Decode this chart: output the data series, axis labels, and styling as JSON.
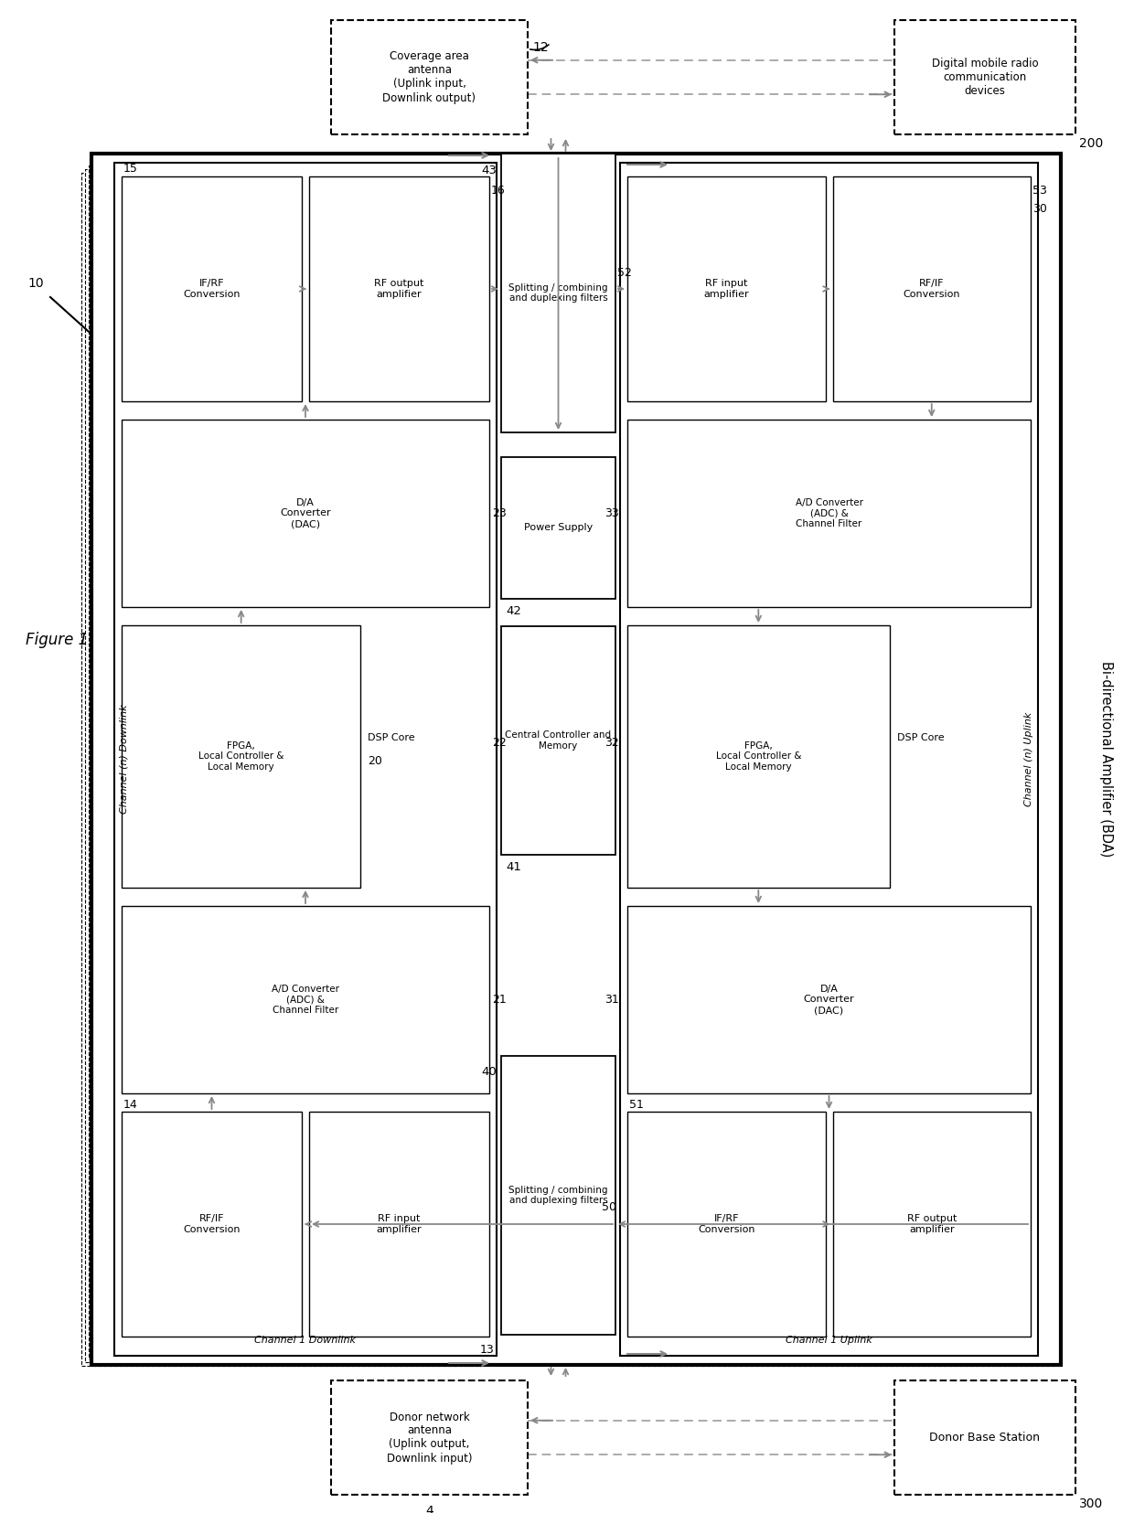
{
  "bg": "#ffffff",
  "fig_title": "Figure 1",
  "bda_label": "Bi-directional Amplifier (BDA)",
  "coverage_antenna": "Coverage area\nantenna\n(Uplink input,\nDownlink output)",
  "coverage_ref": "12",
  "digital_mobile": "Digital mobile radio\ncommunication\ndevices",
  "digital_mobile_ref": "200",
  "donor_network": "Donor network\nantenna\n(Uplink output,\nDownlink input)",
  "donor_network_ref": "4",
  "donor_base": "Donor Base Station",
  "donor_base_ref": "300",
  "ch_n_downlink": "Channel (n) Downlink",
  "ch_1_downlink": "Channel 1 Downlink",
  "ch_n_uplink": "Channel (n) Uplink",
  "ch_1_uplink": "Channel 1 Uplink",
  "dl_labels": [
    "RF input\namplifier",
    "RF/IF\nConversion",
    "A/D Converter\n(ADC) &\nChannel Filter",
    "FPGA,\nLocal Controller &\nLocal Memory",
    "DSP Core",
    "D/A\nConverter\n(DAC)",
    "IF/RF\nConversion",
    "RF output\namplifier"
  ],
  "dl_refs": [
    "",
    "14",
    "21",
    "22",
    "20",
    "23",
    "15",
    "16"
  ],
  "ul_labels": [
    "RF input\namplifier",
    "RF/IF\nConversion",
    "A/D Converter\n(ADC) &\nChannel Filter",
    "FPGA,\nLocal Controller &\nLocal Memory",
    "DSP Core",
    "D/A\nConverter\n(DAC)",
    "IF/RF\nConversion",
    "RF output\namplifier"
  ],
  "ul_refs": [
    "53",
    "30",
    "33",
    "32",
    "",
    "31",
    "51",
    ""
  ],
  "center_top_label": "Splitting / combining\nand duplexing filters",
  "center_top_ref": "43",
  "center_ps_label": "Power Supply",
  "center_ps_ref": "42",
  "center_cc_label": "Central Controller and\nMemory",
  "center_cc_ref": "41",
  "center_bot_label": "Splitting / combining\nand duplexing filters",
  "center_bot_ref": "40"
}
